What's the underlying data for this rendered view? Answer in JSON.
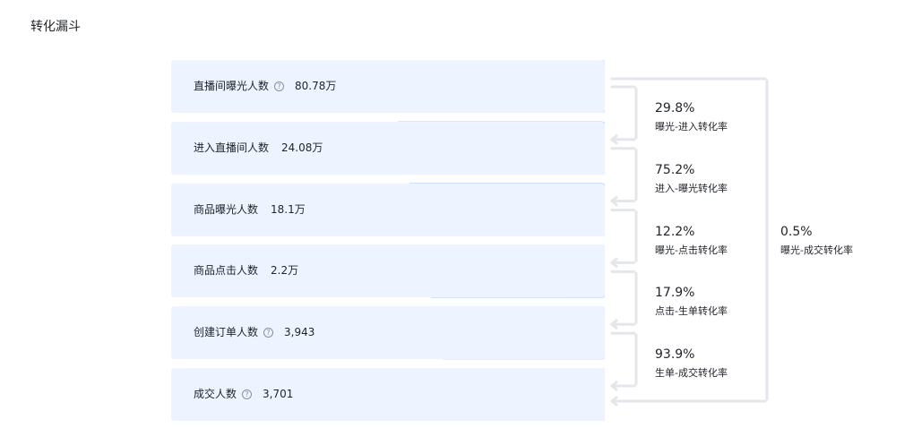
{
  "title": "转化漏斗",
  "colors": {
    "row_bg": "#eef4ff",
    "bars": [
      "#5b8ff9",
      "#6b9bfa",
      "#7ea8fb",
      "#8fb4fb",
      "#a0c0fc",
      "#b1cbfd"
    ],
    "bracket": "#e3e6eb"
  },
  "chart_data": {
    "type": "funnel",
    "stages": [
      {
        "label": "直播间曝光人数",
        "value_text": "80.78万",
        "value": 807800,
        "help": true
      },
      {
        "label": "进入直播间人数",
        "value_text": "24.08万",
        "value": 240800,
        "help": false
      },
      {
        "label": "商品曝光人数",
        "value_text": "18.1万",
        "value": 181000,
        "help": false
      },
      {
        "label": "商品点击人数",
        "value_text": "2.2万",
        "value": 22000,
        "help": false
      },
      {
        "label": "创建订单人数",
        "value_text": "3,943",
        "value": 3943,
        "help": true
      },
      {
        "label": "成交人数",
        "value_text": "3,701",
        "value": 3701,
        "help": true
      }
    ],
    "step_rates": [
      {
        "pct": "29.8%",
        "name": "曝光-进入转化率"
      },
      {
        "pct": "75.2%",
        "name": "进入-曝光转化率"
      },
      {
        "pct": "12.2%",
        "name": "曝光-点击转化率"
      },
      {
        "pct": "17.9%",
        "name": "点击-生单转化率"
      },
      {
        "pct": "93.9%",
        "name": "生单-成交转化率"
      }
    ],
    "overall_rate": {
      "pct": "0.5%",
      "name": "曝光-成交转化率"
    }
  }
}
